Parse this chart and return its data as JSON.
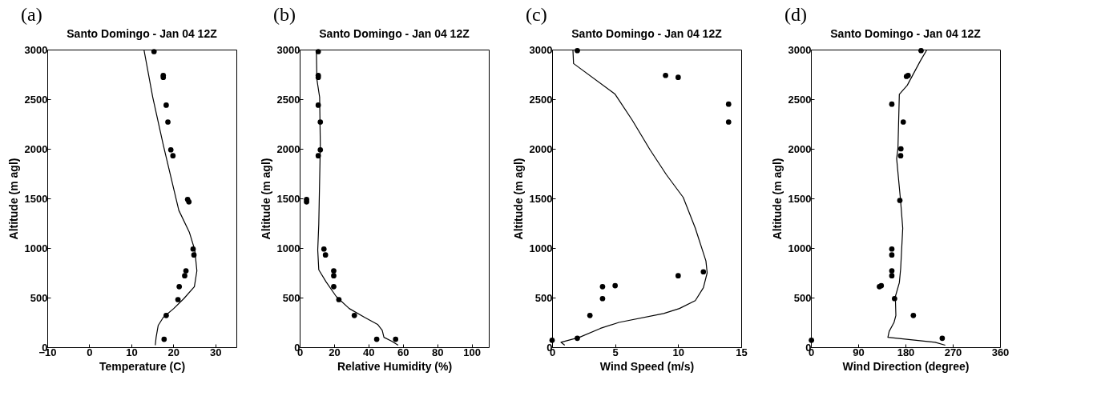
{
  "chart_data": [
    {
      "type": "scatter",
      "title": "Santo Domingo - Jan 04 12Z",
      "xlabel": "Temperature (C)",
      "ylabel": "Altitude (m agl)",
      "annotations": [
        "(a)"
      ],
      "xlim": [
        -10,
        35
      ],
      "xticks": [
        -10,
        0,
        10,
        20,
        30
      ],
      "ylim": [
        0,
        3000
      ],
      "yticks": [
        0,
        500,
        1000,
        1500,
        2000,
        2500,
        3000
      ],
      "grid": false,
      "line_style": "solid",
      "series": [
        {
          "type": "line",
          "marker": "none",
          "color": "#000000",
          "x": [
            13.0,
            15.1,
            17.6,
            21.3,
            23.8,
            25.1,
            25.6,
            25.0,
            22.5,
            20.1,
            17.6,
            16.4,
            15.9,
            15.7
          ],
          "values": [
            3000,
            2520,
            2040,
            1380,
            1160,
            980,
            770,
            610,
            490,
            390,
            300,
            220,
            100,
            20
          ]
        },
        {
          "type": "scatter",
          "marker": "circle",
          "color": "#000000",
          "x": [
            15.4,
            17.6,
            17.6,
            18.3,
            18.7,
            19.4,
            19.9,
            23.4,
            23.7,
            24.7,
            24.9,
            23.0,
            22.7,
            21.4,
            21.1,
            18.3,
            17.8
          ],
          "values": [
            2980,
            2740,
            2720,
            2440,
            2270,
            1990,
            1930,
            1490,
            1465,
            990,
            930,
            770,
            720,
            610,
            480,
            320,
            80
          ]
        }
      ]
    },
    {
      "type": "scatter",
      "title": "Santo Domingo - Jan 04 12Z",
      "xlabel": "Relative Humidity (%)",
      "ylabel": "Altitude (m agl)",
      "annotations": [
        "(b)"
      ],
      "xlim": [
        0,
        110
      ],
      "xticks": [
        0,
        20,
        40,
        60,
        80,
        100
      ],
      "ylim": [
        0,
        3000
      ],
      "yticks": [
        0,
        500,
        1000,
        1500,
        2000,
        2500,
        3000
      ],
      "grid": false,
      "line_style": "solid",
      "series": [
        {
          "type": "line",
          "marker": "none",
          "color": "#000000",
          "x": [
            9.7,
            10,
            11.6,
            12,
            11.1,
            10.5,
            11.1,
            15.3,
            21.3,
            28.8,
            37.8,
            45.3,
            48,
            49,
            53.5,
            57.3
          ],
          "values": [
            3000,
            2700,
            2520,
            2040,
            1240,
            980,
            780,
            660,
            510,
            390,
            300,
            230,
            170,
            100,
            60,
            20
          ]
        },
        {
          "type": "scatter",
          "marker": "circle",
          "color": "#000000",
          "x": [
            10.8,
            10.8,
            10.8,
            10.8,
            12.0,
            12.0,
            10.8,
            4.0,
            4.0,
            14.1,
            15.0,
            19.8,
            19.8,
            19.8,
            22.8,
            31.8,
            44.8,
            55.8
          ],
          "values": [
            2980,
            2740,
            2720,
            2440,
            2270,
            1990,
            1930,
            1490,
            1465,
            990,
            930,
            770,
            720,
            610,
            480,
            320,
            80,
            80
          ]
        }
      ]
    },
    {
      "type": "scatter",
      "title": "Santo Domingo - Jan 04 12Z",
      "xlabel": "Wind Speed (m/s)",
      "ylabel": "Altitude (m agl)",
      "annotations": [
        "(c)"
      ],
      "xlim": [
        0,
        15
      ],
      "xticks": [
        0,
        5,
        10,
        15
      ],
      "ylim": [
        0,
        3000
      ],
      "yticks": [
        0,
        500,
        1000,
        1500,
        2000,
        2500,
        3000
      ],
      "grid": false,
      "line_style": "solid",
      "series": [
        {
          "type": "line",
          "marker": "none",
          "color": "#000000",
          "x": [
            1.65,
            1.7,
            5.0,
            6.35,
            7.77,
            9.06,
            10.4,
            11.36,
            12.2,
            12.3,
            12.0,
            11.36,
            10.1,
            8.85,
            5.3,
            3.84,
            2.17,
            0.7,
            1.0
          ],
          "values": [
            3000,
            2860,
            2550,
            2290,
            1990,
            1740,
            1510,
            1200,
            870,
            750,
            600,
            470,
            390,
            340,
            250,
            190,
            100,
            50,
            20
          ]
        },
        {
          "type": "scatter",
          "marker": "circle",
          "color": "#000000",
          "x": [
            2.0,
            9.0,
            10.0,
            14.0,
            14.0,
            10.0,
            12.0,
            4.0,
            5.0,
            4.0,
            3.0,
            2.0,
            0.0
          ],
          "values": [
            2990,
            2740,
            2720,
            2450,
            2270,
            720,
            760,
            610,
            620,
            490,
            320,
            90,
            70
          ]
        }
      ]
    },
    {
      "type": "scatter",
      "title": "Santo Domingo - Jan 04 12Z",
      "xlabel": "Wind Direction (degree)",
      "ylabel": "Altitude (m agl)",
      "annotations": [
        "(d)"
      ],
      "xlim": [
        0,
        360
      ],
      "xticks": [
        0,
        90,
        180,
        270,
        360
      ],
      "ylim": [
        0,
        3000
      ],
      "yticks": [
        0,
        500,
        1000,
        1500,
        2000,
        2500,
        3000
      ],
      "grid": false,
      "line_style": "solid",
      "series": [
        {
          "type": "line",
          "marker": "none",
          "color": "#000000",
          "x": [
            221,
            208.7,
            183.4,
            168.3,
            165.7,
            163.2,
            170.8,
            174.8,
            170.8,
            168.3,
            160.7,
            161.7,
            158.2,
            149,
            146.5,
            236.5,
            255.7
          ],
          "values": [
            3000,
            2890,
            2640,
            2550,
            2010,
            1900,
            1470,
            1200,
            790,
            650,
            510,
            320,
            250,
            160,
            100,
            50,
            20
          ]
        },
        {
          "type": "scatter",
          "marker": "circle",
          "color": "#000000",
          "x": [
            209.7,
            181.9,
            185,
            154,
            175.8,
            171.3,
            170.8,
            169.3,
            154,
            154,
            154,
            154,
            130.4,
            133.9,
            159.2,
            195,
            250,
            1
          ],
          "values": [
            2990,
            2730,
            2740,
            2450,
            2270,
            2000,
            1930,
            1480,
            990,
            930,
            770,
            720,
            610,
            620,
            490,
            320,
            90,
            70
          ]
        }
      ]
    }
  ]
}
